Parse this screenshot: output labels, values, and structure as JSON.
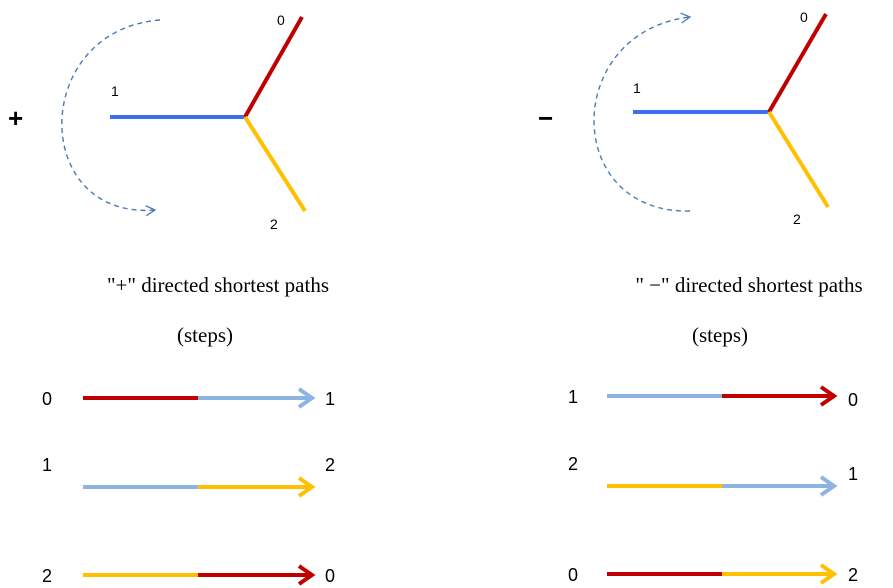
{
  "colors": {
    "red": "#c00000",
    "blue": "#3d6ef0",
    "yellow": "#ffc000",
    "light_blue": "#8db3e2",
    "dashed_arrow": "#4a7ab8",
    "text": "#000000"
  },
  "plus_panel": {
    "sign": "+",
    "node_0": "0",
    "node_1": "1",
    "node_2": "2",
    "caption": "\"+\" directed shortest paths",
    "steps": "(steps)",
    "paths": [
      {
        "from": "0",
        "to": "1",
        "first_color": "red",
        "second_color": "light_blue"
      },
      {
        "from": "1",
        "to": "2",
        "first_color": "light_blue",
        "second_color": "yellow"
      },
      {
        "from": "2",
        "to": "0",
        "first_color": "yellow",
        "second_color": "red"
      }
    ]
  },
  "minus_panel": {
    "sign": "−",
    "node_0": "0",
    "node_1": "1",
    "node_2": "2",
    "caption": "\" −\" directed shortest paths",
    "steps": "(steps)",
    "paths": [
      {
        "from": "1",
        "to": "0",
        "first_color": "light_blue",
        "second_color": "red"
      },
      {
        "from": "2",
        "to": "1",
        "first_color": "yellow",
        "second_color": "light_blue"
      },
      {
        "from": "0",
        "to": "2",
        "first_color": "red",
        "second_color": "yellow"
      }
    ]
  }
}
